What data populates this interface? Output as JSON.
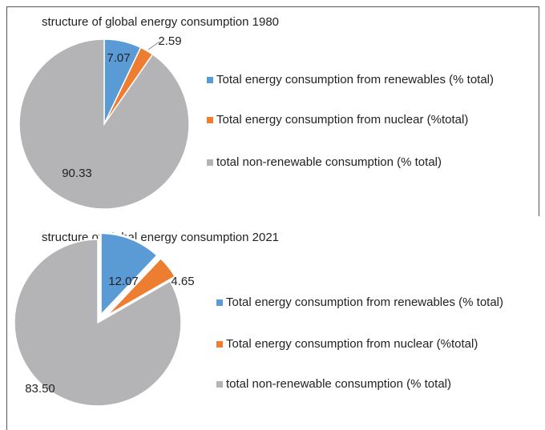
{
  "chart_data": [
    {
      "type": "pie",
      "title": "structure of global energy consumption 1980",
      "categories": [
        "Total energy consumption from renewables (% total)",
        "Total energy consumption from nuclear (%total)",
        "total non-renewable consumption (% total)"
      ],
      "values": [
        7.07,
        2.59,
        90.33
      ],
      "colors": [
        "#5b9bd5",
        "#ed7d31",
        "#b4b4b6"
      ],
      "exploded": [
        false,
        false,
        false
      ]
    },
    {
      "type": "pie",
      "title": "structure of global energy consumption 2021",
      "categories": [
        "Total energy consumption from renewables (% total)",
        "Total energy consumption from nuclear (%total)",
        "total non-renewable consumption (% total)"
      ],
      "values": [
        12.07,
        4.65,
        83.5
      ],
      "value_labels": [
        "12.07",
        "4.65",
        "83.50"
      ],
      "colors": [
        "#5b9bd5",
        "#ed7d31",
        "#b4b4b6"
      ],
      "exploded": [
        true,
        true,
        false
      ]
    }
  ]
}
